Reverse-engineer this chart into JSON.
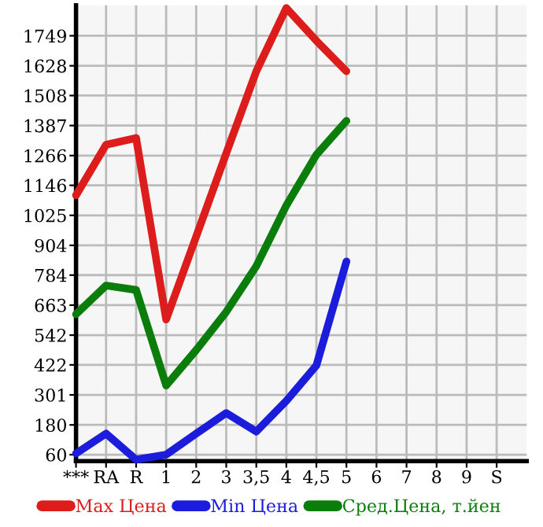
{
  "chart_data": {
    "type": "line",
    "categories": [
      "***",
      "RA",
      "R",
      "1",
      "2",
      "3",
      "3,5",
      "4",
      "4,5",
      "5",
      "6",
      "7",
      "8",
      "9",
      "S"
    ],
    "series": [
      {
        "name": "Max Цена",
        "color": "#dd1c1c",
        "values": [
          1106,
          1310,
          1337,
          605,
          940,
          1275,
          1606,
          1861,
          1729,
          1606,
          null,
          null,
          null,
          null,
          null
        ]
      },
      {
        "name": "Min Цена",
        "color": "#1c1cdd",
        "values": [
          65,
          145,
          40,
          60,
          145,
          228,
          153,
          277,
          420,
          839,
          null,
          null,
          null,
          null,
          null
        ]
      },
      {
        "name": "Сред.Цена, т.йен",
        "color": "#0a7d0a",
        "values": [
          626,
          742,
          724,
          339,
          482,
          636,
          820,
          1065,
          1269,
          1406,
          null,
          null,
          null,
          null,
          null
        ]
      }
    ],
    "ylim": [
      34,
      1872
    ],
    "yticks": [
      60,
      180,
      301,
      422,
      542,
      663,
      784,
      904,
      1025,
      1146,
      1266,
      1387,
      1508,
      1628,
      1749
    ],
    "grid": true,
    "legend": "bottom",
    "marker": "none",
    "line_style": "solid"
  }
}
